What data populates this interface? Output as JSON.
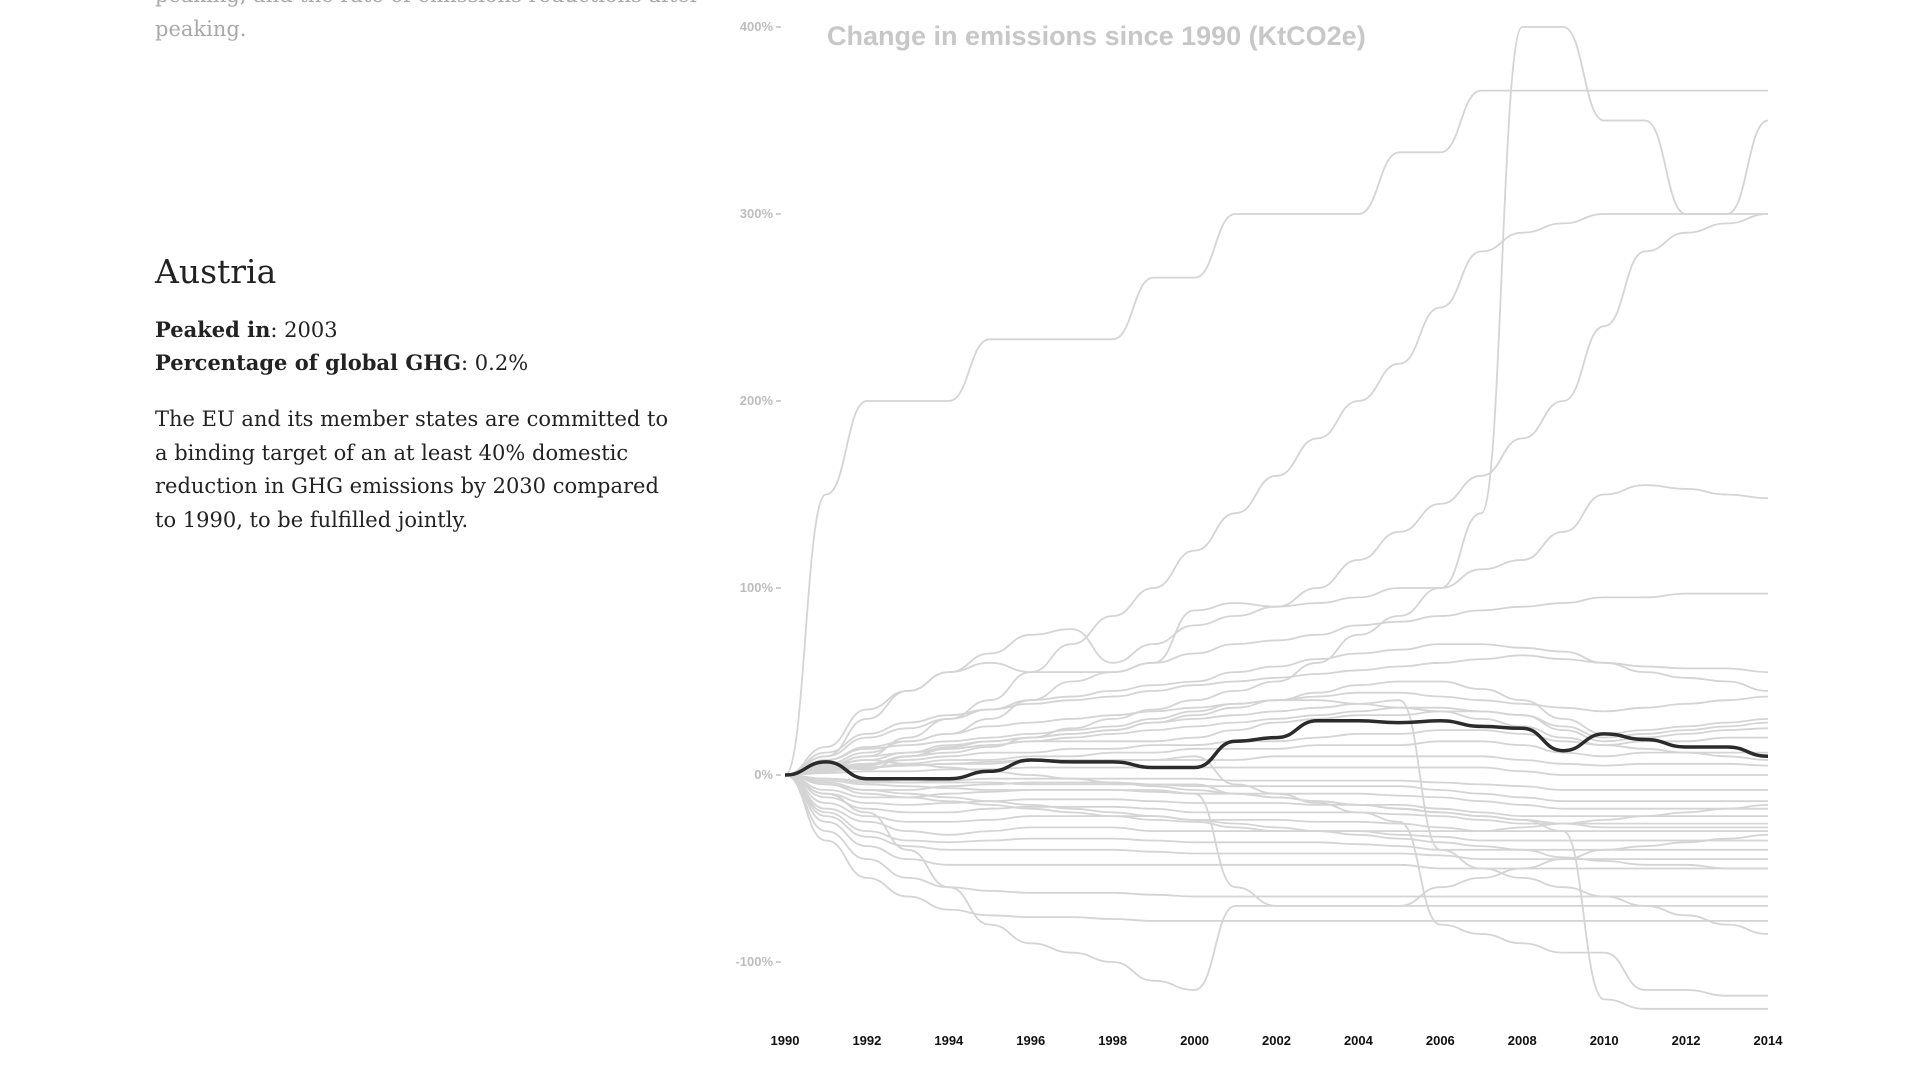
{
  "previous_section": {
    "line1": "peaking, and the rate of emissions reductions after",
    "line2": "peaking."
  },
  "country": {
    "name": "Austria",
    "peak_label": "Peaked in",
    "peak_value": ": 2003",
    "share_label": "Percentage of global GHG",
    "share_value": ": 0.2%",
    "description": "The EU and its member states are committed to a binding target of an at least 40% domestic reduction in GHG emissions by 2030 compared to 1990, to be fulfilled jointly."
  },
  "chart_data": {
    "type": "line",
    "title": "Change in emissions since 1990 (KtCO2e)",
    "xlabel": "",
    "ylabel": "",
    "x": [
      1990,
      1991,
      1992,
      1993,
      1994,
      1995,
      1996,
      1997,
      1998,
      1999,
      2000,
      2001,
      2002,
      2003,
      2004,
      2005,
      2006,
      2007,
      2008,
      2009,
      2010,
      2011,
      2012,
      2013,
      2014
    ],
    "xticks": [
      "1990",
      "1992",
      "1994",
      "1996",
      "1998",
      "2000",
      "2002",
      "2004",
      "2006",
      "2008",
      "2010",
      "2012",
      "2014"
    ],
    "yticks": [
      -100,
      0,
      100,
      200,
      300,
      400
    ],
    "yticklabels": [
      "-100%",
      "0%",
      "100%",
      "200%",
      "300%",
      "400%"
    ],
    "ylim": [
      -130,
      400
    ],
    "xlim": [
      1990,
      2014
    ],
    "colors": {
      "highlight": "#2b2b2b",
      "background_series": "#d4d4d4"
    },
    "highlight": {
      "values": [
        0,
        7,
        -2,
        -2,
        -2,
        2,
        8,
        7,
        7,
        4,
        4,
        18,
        20,
        29,
        29,
        28,
        29,
        26,
        25,
        13,
        22,
        19,
        15,
        15,
        10
      ]
    },
    "series": [
      {
        "values": [
          0,
          150,
          200,
          200,
          200,
          233,
          233,
          233,
          233,
          266,
          266,
          300,
          300,
          300,
          300,
          333,
          333,
          366,
          366,
          366,
          366,
          366,
          366,
          366,
          366
        ]
      },
      {
        "values": [
          0,
          5,
          3,
          10,
          12,
          15,
          20,
          25,
          30,
          35,
          40,
          45,
          50,
          60,
          75,
          85,
          100,
          140,
          400,
          400,
          350,
          350,
          300,
          300,
          350
        ]
      },
      {
        "values": [
          0,
          5,
          10,
          20,
          30,
          40,
          55,
          70,
          85,
          100,
          120,
          140,
          160,
          180,
          200,
          220,
          250,
          280,
          290,
          295,
          300,
          300,
          300,
          300,
          300
        ]
      },
      {
        "values": [
          0,
          10,
          30,
          45,
          55,
          65,
          75,
          78,
          60,
          70,
          80,
          85,
          90,
          100,
          115,
          130,
          145,
          160,
          180,
          200,
          240,
          280,
          290,
          295,
          300
        ]
      },
      {
        "values": [
          0,
          15,
          35,
          45,
          55,
          60,
          55,
          55,
          55,
          60,
          88,
          92,
          90,
          92,
          95,
          100,
          100,
          110,
          115,
          130,
          150,
          155,
          153,
          150,
          148
        ]
      },
      {
        "values": [
          0,
          8,
          15,
          18,
          22,
          30,
          40,
          50,
          55,
          60,
          65,
          70,
          72,
          75,
          80,
          82,
          85,
          88,
          90,
          92,
          95,
          95,
          97,
          97,
          97
        ]
      },
      {
        "values": [
          0,
          10,
          20,
          25,
          30,
          35,
          40,
          42,
          45,
          48,
          50,
          55,
          58,
          62,
          65,
          67,
          70,
          70,
          68,
          66,
          60,
          58,
          57,
          57,
          55
        ]
      },
      {
        "values": [
          0,
          12,
          22,
          28,
          32,
          35,
          38,
          40,
          42,
          45,
          48,
          50,
          52,
          54,
          56,
          58,
          60,
          62,
          64,
          62,
          60,
          55,
          52,
          50,
          45
        ]
      },
      {
        "values": [
          0,
          6,
          12,
          18,
          22,
          26,
          28,
          30,
          32,
          34,
          36,
          38,
          40,
          42,
          44,
          44,
          42,
          40,
          38,
          36,
          34,
          36,
          38,
          40,
          42
        ]
      },
      {
        "values": [
          0,
          4,
          8,
          12,
          16,
          18,
          20,
          22,
          24,
          28,
          32,
          36,
          40,
          44,
          48,
          50,
          50,
          46,
          40,
          30,
          22,
          24,
          26,
          28,
          30
        ]
      },
      {
        "values": [
          0,
          3,
          6,
          10,
          14,
          16,
          18,
          20,
          22,
          24,
          26,
          28,
          30,
          32,
          34,
          36,
          36,
          34,
          32,
          26,
          20,
          22,
          24,
          26,
          28
        ]
      },
      {
        "values": [
          0,
          5,
          10,
          12,
          14,
          16,
          18,
          18,
          18,
          18,
          20,
          24,
          28,
          30,
          32,
          32,
          34,
          34,
          32,
          24,
          18,
          20,
          22,
          24,
          25
        ]
      },
      {
        "values": [
          0,
          4,
          6,
          8,
          10,
          12,
          12,
          14,
          14,
          16,
          16,
          18,
          18,
          20,
          22,
          22,
          24,
          24,
          22,
          18,
          16,
          18,
          18,
          20,
          20
        ]
      },
      {
        "values": [
          0,
          2,
          4,
          6,
          8,
          8,
          10,
          10,
          12,
          12,
          14,
          14,
          14,
          16,
          16,
          16,
          18,
          18,
          16,
          12,
          10,
          12,
          12,
          12,
          12
        ]
      },
      {
        "values": [
          0,
          3,
          4,
          5,
          6,
          7,
          8,
          8,
          8,
          8,
          8,
          8,
          10,
          10,
          10,
          10,
          10,
          10,
          8,
          6,
          5,
          6,
          6,
          6,
          5
        ]
      },
      {
        "values": [
          0,
          1,
          2,
          2,
          3,
          3,
          4,
          4,
          4,
          4,
          4,
          4,
          4,
          4,
          4,
          4,
          4,
          4,
          2,
          0,
          0,
          0,
          0,
          0,
          0
        ]
      },
      {
        "values": [
          0,
          -2,
          -4,
          -4,
          -3,
          -2,
          -2,
          -2,
          -2,
          -2,
          -2,
          -3,
          -3,
          -3,
          -3,
          -3,
          -4,
          -5,
          -6,
          -8,
          -8,
          -8,
          -8,
          -8,
          -8
        ]
      },
      {
        "values": [
          0,
          -5,
          -8,
          -8,
          -6,
          -5,
          -4,
          -4,
          -4,
          -5,
          -6,
          -6,
          -6,
          -6,
          -6,
          -6,
          -8,
          -10,
          -12,
          -14,
          -14,
          -14,
          -14,
          -14,
          -14
        ]
      },
      {
        "values": [
          0,
          -8,
          -12,
          -12,
          -10,
          -9,
          -8,
          -8,
          -8,
          -9,
          -10,
          -10,
          -10,
          -10,
          -10,
          -11,
          -12,
          -14,
          -16,
          -18,
          -18,
          -18,
          -18,
          -18,
          -18
        ]
      },
      {
        "values": [
          0,
          -10,
          -15,
          -16,
          -15,
          -14,
          -13,
          -13,
          -13,
          -14,
          -15,
          -15,
          -15,
          -16,
          -16,
          -16,
          -18,
          -20,
          -22,
          -22,
          -22,
          -22,
          -22,
          -22,
          -22
        ]
      },
      {
        "values": [
          0,
          -12,
          -18,
          -20,
          -20,
          -18,
          -17,
          -17,
          -17,
          -18,
          -20,
          -20,
          -20,
          -20,
          -20,
          -21,
          -22,
          -24,
          -26,
          -26,
          -26,
          -26,
          -26,
          -26,
          -26
        ]
      },
      {
        "values": [
          0,
          -15,
          -22,
          -25,
          -25,
          -24,
          -22,
          -22,
          -22,
          -22,
          -24,
          -24,
          -24,
          -25,
          -25,
          -26,
          -28,
          -30,
          -30,
          -30,
          -30,
          -30,
          -30,
          -30,
          -30
        ]
      },
      {
        "values": [
          0,
          -18,
          -25,
          -30,
          -32,
          -30,
          -28,
          -28,
          -28,
          -30,
          -30,
          -30,
          -30,
          -30,
          -30,
          -32,
          -33,
          -35,
          -35,
          -35,
          -35,
          -35,
          -35,
          -35,
          -35
        ]
      },
      {
        "values": [
          0,
          -20,
          -30,
          -35,
          -36,
          -35,
          -34,
          -34,
          -34,
          -35,
          -36,
          -36,
          -36,
          -36,
          -37,
          -38,
          -40,
          -40,
          -40,
          -40,
          -40,
          -40,
          -40,
          -40,
          -40
        ]
      },
      {
        "values": [
          0,
          -22,
          -33,
          -38,
          -40,
          -40,
          -40,
          -40,
          -40,
          -41,
          -42,
          -42,
          -42,
          -42,
          -42,
          -42,
          -43,
          -45,
          -45,
          -45,
          -45,
          -45,
          -45,
          -45,
          -45
        ]
      },
      {
        "values": [
          0,
          -25,
          -38,
          -45,
          -48,
          -48,
          -48,
          -48,
          -48,
          -48,
          -48,
          -48,
          -48,
          -48,
          -48,
          -48,
          -50,
          -50,
          -50,
          -50,
          -50,
          -50,
          -50,
          -50,
          -50
        ]
      },
      {
        "values": [
          0,
          -30,
          -45,
          -55,
          -60,
          -62,
          -63,
          -63,
          -63,
          -64,
          -65,
          -65,
          -65,
          -65,
          -65,
          -65,
          -65,
          -65,
          -65,
          -65,
          -65,
          -65,
          -65,
          -65,
          -65
        ]
      },
      {
        "values": [
          0,
          -35,
          -55,
          -65,
          -72,
          -75,
          -76,
          -76,
          -77,
          -78,
          -78,
          -78,
          -78,
          -78,
          -78,
          -78,
          -78,
          -78,
          -78,
          -78,
          -78,
          -78,
          -78,
          -78,
          -78
        ]
      },
      {
        "values": [
          0,
          -10,
          -20,
          -40,
          -60,
          -80,
          -90,
          -95,
          -100,
          -110,
          -115,
          -70,
          -70,
          -70,
          -70,
          -70,
          -70,
          -70,
          -70,
          -70,
          -70,
          -70,
          -70,
          -70,
          -70
        ]
      },
      {
        "values": [
          0,
          -5,
          -10,
          -12,
          -14,
          -16,
          -18,
          -20,
          -22,
          -24,
          -25,
          -28,
          -30,
          -30,
          -30,
          -30,
          -30,
          -30,
          -28,
          -26,
          -24,
          -22,
          -20,
          -18,
          -16
        ]
      },
      {
        "values": [
          0,
          2,
          4,
          5,
          6,
          6,
          8,
          8,
          8,
          8,
          10,
          -5,
          -10,
          -15,
          -20,
          -25,
          -80,
          -85,
          -90,
          -95,
          -95,
          -115,
          -115,
          -118,
          -118
        ]
      },
      {
        "values": [
          0,
          2,
          5,
          10,
          15,
          18,
          20,
          22,
          24,
          28,
          30,
          32,
          34,
          36,
          38,
          40,
          -40,
          -50,
          -55,
          -60,
          -65,
          -70,
          -75,
          -80,
          -85
        ]
      },
      {
        "values": [
          0,
          -3,
          -5,
          -6,
          -7,
          -8,
          -8,
          -8,
          -8,
          -8,
          -10,
          -60,
          -70,
          -70,
          -70,
          -70,
          -60,
          -55,
          -50,
          -45,
          -40,
          -38,
          -36,
          -34,
          -32
        ]
      },
      {
        "values": [
          0,
          -2,
          -3,
          -4,
          -4,
          -4,
          -5,
          -5,
          -5,
          -5,
          -5,
          -10,
          -12,
          -14,
          -16,
          -18,
          -20,
          -22,
          -24,
          -26,
          -28,
          -28,
          -28,
          -28,
          -28
        ]
      },
      {
        "values": [
          0,
          8,
          14,
          16,
          18,
          20,
          22,
          24,
          26,
          30,
          34,
          38,
          40,
          40,
          38,
          36,
          34,
          30,
          26,
          20,
          16,
          14,
          12,
          10,
          8
        ]
      },
      {
        "values": [
          0,
          -4,
          -8,
          -10,
          -12,
          -14,
          -16,
          -18,
          -20,
          -22,
          -24,
          -26,
          -28,
          -30,
          -32,
          -34,
          -36,
          -38,
          -40,
          -44,
          -46,
          -48,
          -48,
          -50,
          -50
        ]
      },
      {
        "values": [
          0,
          5,
          8,
          6,
          4,
          2,
          0,
          -2,
          -4,
          -6,
          -8,
          -10,
          -12,
          -14,
          -16,
          -18,
          -20,
          -22,
          -24,
          -30,
          -120,
          -125,
          -125,
          -125,
          -125
        ]
      }
    ]
  }
}
